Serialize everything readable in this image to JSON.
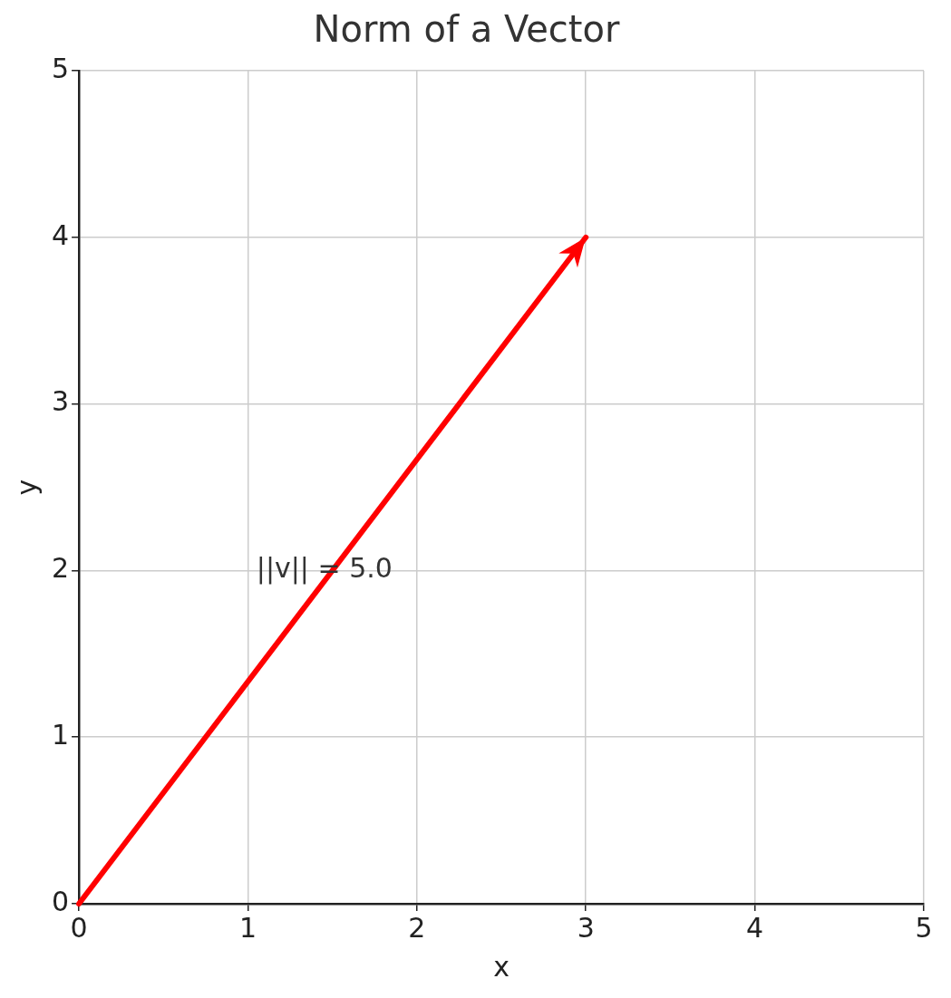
{
  "chart_data": {
    "type": "line",
    "title": "Norm of a Vector",
    "xlabel": "x",
    "ylabel": "y",
    "x": [
      0,
      3
    ],
    "series": [
      {
        "color": "#ff0000",
        "values": [
          0,
          4
        ]
      }
    ],
    "xlim": [
      0,
      5
    ],
    "ylim": [
      0,
      5
    ],
    "xticks": [
      0,
      1,
      2,
      3,
      4,
      5
    ],
    "yticks": [
      0,
      1,
      2,
      3,
      4,
      5
    ],
    "grid": true,
    "legend": false,
    "marker": "none",
    "line_style": "solid",
    "annotations": [
      "||v|| = 5.0"
    ]
  }
}
